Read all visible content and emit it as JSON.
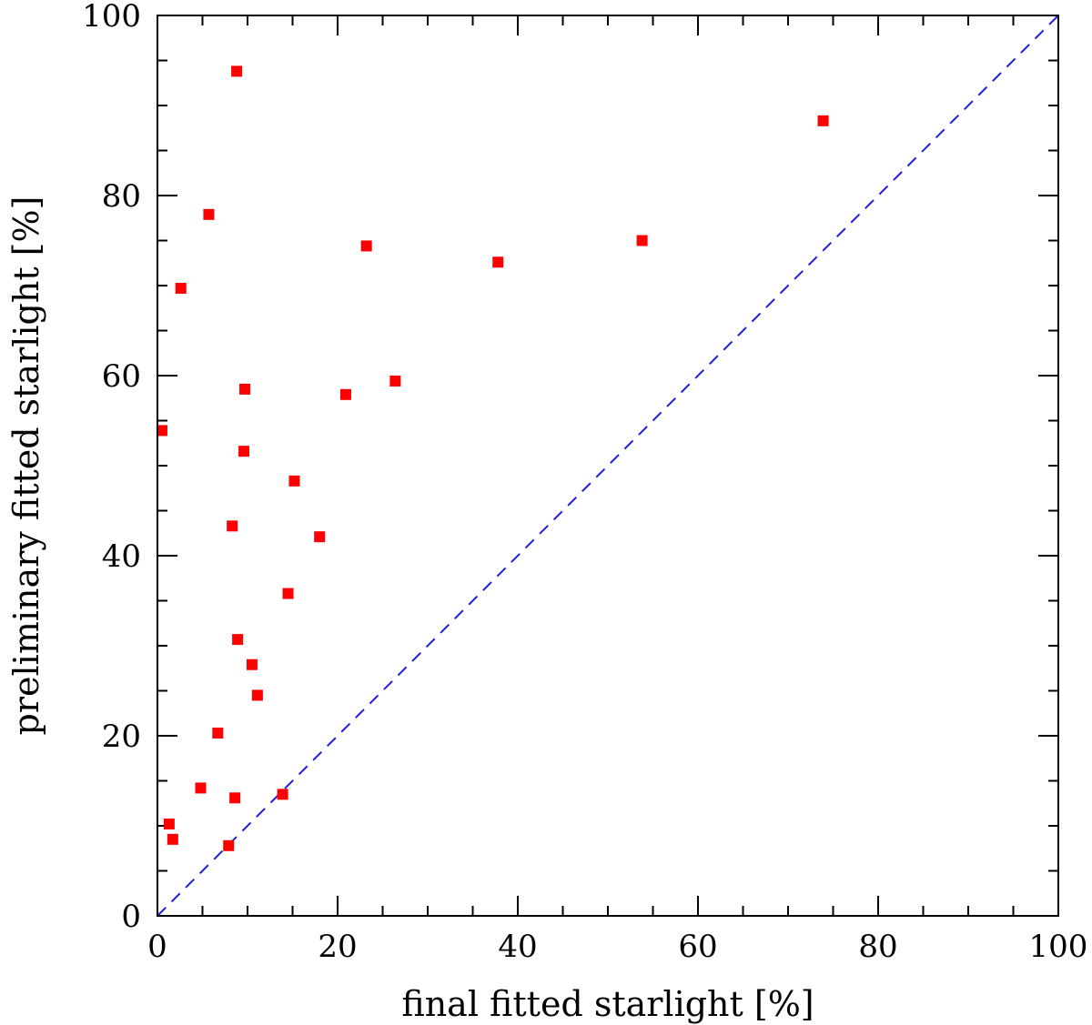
{
  "chart_data": {
    "type": "scatter",
    "title": "",
    "xlabel": "final fitted starlight [%]",
    "ylabel": "preliminary fitted starlight [%]",
    "xlim": [
      0,
      100
    ],
    "ylim": [
      0,
      100
    ],
    "xticks": [
      0,
      20,
      40,
      60,
      80,
      100
    ],
    "yticks": [
      0,
      20,
      40,
      60,
      80,
      100
    ],
    "xtick_labels": [
      "0",
      "20",
      "40",
      "60",
      "80",
      "100"
    ],
    "ytick_labels": [
      "0",
      "20",
      "40",
      "60",
      "80",
      "100"
    ],
    "minor_tick_step": 5,
    "grid": false,
    "reference_line": {
      "name": "one-to-one",
      "x": [
        0,
        100
      ],
      "y": [
        0,
        100
      ],
      "style": "dashed",
      "color": "#1f1fe0"
    },
    "series": [
      {
        "name": "data",
        "marker": "square",
        "color": "#ff0000",
        "points": [
          {
            "x": 0.5,
            "y": 53.9
          },
          {
            "x": 1.3,
            "y": 10.2
          },
          {
            "x": 1.7,
            "y": 8.5
          },
          {
            "x": 2.6,
            "y": 69.7
          },
          {
            "x": 4.8,
            "y": 14.2
          },
          {
            "x": 5.7,
            "y": 77.9
          },
          {
            "x": 6.7,
            "y": 20.3
          },
          {
            "x": 7.9,
            "y": 7.8
          },
          {
            "x": 8.3,
            "y": 43.3
          },
          {
            "x": 8.6,
            "y": 13.1
          },
          {
            "x": 8.8,
            "y": 93.8
          },
          {
            "x": 8.9,
            "y": 30.7
          },
          {
            "x": 9.6,
            "y": 51.6
          },
          {
            "x": 9.7,
            "y": 58.5
          },
          {
            "x": 10.5,
            "y": 27.9
          },
          {
            "x": 11.1,
            "y": 24.5
          },
          {
            "x": 13.9,
            "y": 13.5
          },
          {
            "x": 14.5,
            "y": 35.8
          },
          {
            "x": 15.2,
            "y": 48.3
          },
          {
            "x": 18.0,
            "y": 42.1
          },
          {
            "x": 20.9,
            "y": 57.9
          },
          {
            "x": 23.2,
            "y": 74.4
          },
          {
            "x": 26.4,
            "y": 59.4
          },
          {
            "x": 37.8,
            "y": 72.6
          },
          {
            "x": 53.8,
            "y": 75.0
          },
          {
            "x": 73.9,
            "y": 88.3
          }
        ]
      }
    ]
  }
}
